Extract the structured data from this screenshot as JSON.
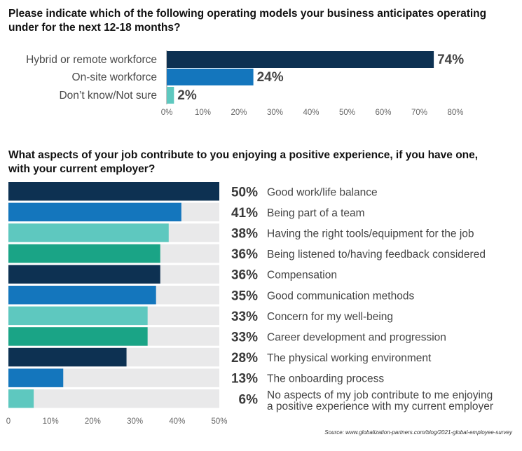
{
  "chart_data": [
    {
      "type": "bar",
      "orientation": "horizontal",
      "title": "Please indicate which of the following operating models your business anticipates operating under for the next 12-18 months?",
      "categories": [
        "Hybrid or remote workforce",
        "On-site workforce",
        "Don’t know/Not sure"
      ],
      "values": [
        74,
        24,
        2
      ],
      "value_labels": [
        "74%",
        "24%",
        "2%"
      ],
      "colors": [
        "#0d3152",
        "#1476bd",
        "#5ec8bf"
      ],
      "xlim": [
        0,
        80
      ],
      "xticks": [
        "0%",
        "10%",
        "20%",
        "30%",
        "40%",
        "50%",
        "60%",
        "70%",
        "80%"
      ],
      "grid": false,
      "legend": "none"
    },
    {
      "type": "bar",
      "orientation": "horizontal",
      "title": "What aspects of your job contribute to you enjoying a positive experience, if you have one, with your current employer?",
      "categories": [
        "Good work/life balance",
        "Being part of a team",
        "Having the right tools/equipment for the job",
        "Being listened to/having feedback considered",
        "Compensation",
        "Good communication methods",
        "Concern for my well-being",
        "Career development and progression",
        "The physical working environment",
        "The onboarding process",
        "No aspects of my job contribute to me enjoying a positive experience with my current employer"
      ],
      "category_lines": [
        [
          "Good work/life balance"
        ],
        [
          "Being part of a team"
        ],
        [
          "Having the right tools/equipment for the job"
        ],
        [
          "Being listened to/having feedback considered"
        ],
        [
          "Compensation"
        ],
        [
          "Good communication methods"
        ],
        [
          "Concern for my well-being"
        ],
        [
          "Career development and progression"
        ],
        [
          "The physical working environment"
        ],
        [
          "The onboarding process"
        ],
        [
          "No aspects of my job contribute to me enjoying",
          "a positive experience with my current employer"
        ]
      ],
      "values": [
        50,
        41,
        38,
        36,
        36,
        35,
        33,
        33,
        28,
        13,
        6
      ],
      "value_labels": [
        "50%",
        "41%",
        "38%",
        "36%",
        "36%",
        "35%",
        "33%",
        "33%",
        "28%",
        "13%",
        "6%"
      ],
      "colors": [
        "#0d3152",
        "#1476bd",
        "#5ec8bf",
        "#1aa486",
        "#0d3152",
        "#1476bd",
        "#5ec8bf",
        "#1aa486",
        "#0d3152",
        "#1476bd",
        "#5ec8bf"
      ],
      "row_background": "#e9e9ea",
      "xlim": [
        0,
        50
      ],
      "xticks": [
        "0",
        "10%",
        "20%",
        "30%",
        "40%",
        "50%"
      ],
      "grid": false,
      "legend": "none"
    }
  ],
  "source": "Source: www.globalization-partners.com/blog/2021-global-employee-survey"
}
